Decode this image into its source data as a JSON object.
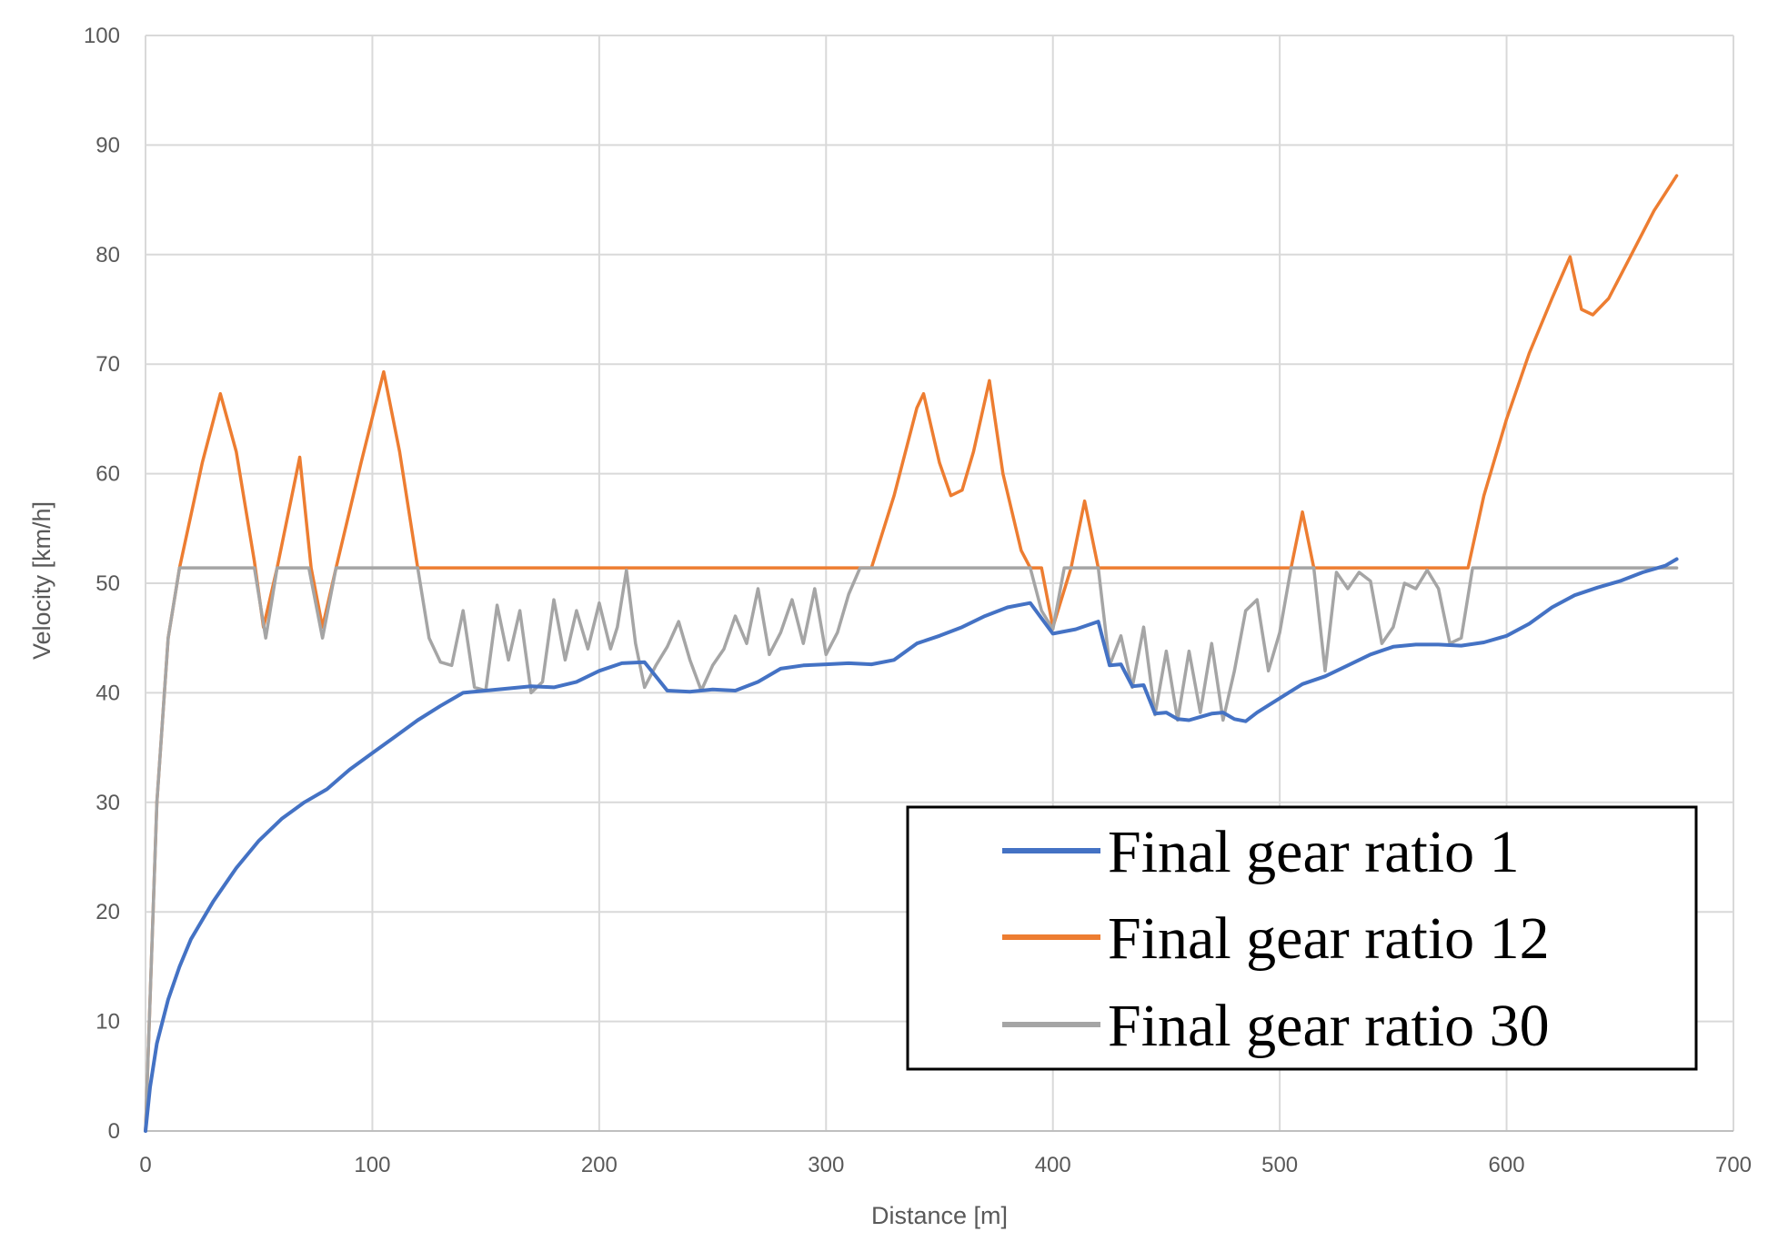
{
  "chart_data": {
    "type": "line",
    "title": "",
    "xlabel": "Distance [m]",
    "ylabel": "Velocity [km/h]",
    "xlim": [
      0,
      700
    ],
    "ylim": [
      0,
      100
    ],
    "xticks": [
      0,
      100,
      200,
      300,
      400,
      500,
      600,
      700
    ],
    "yticks": [
      0,
      10,
      20,
      30,
      40,
      50,
      60,
      70,
      80,
      90,
      100
    ],
    "grid": true,
    "legend_position": "bottom-right",
    "series": [
      {
        "name": "Final gear ratio 1",
        "color": "#4472C4",
        "x": [
          0,
          2,
          5,
          10,
          15,
          20,
          30,
          40,
          50,
          60,
          70,
          80,
          90,
          100,
          110,
          120,
          130,
          140,
          150,
          160,
          170,
          180,
          190,
          200,
          210,
          220,
          230,
          240,
          250,
          260,
          270,
          280,
          290,
          300,
          310,
          320,
          330,
          340,
          350,
          360,
          370,
          380,
          390,
          400,
          410,
          420,
          425,
          430,
          435,
          440,
          445,
          450,
          455,
          460,
          465,
          470,
          475,
          480,
          485,
          490,
          500,
          510,
          520,
          530,
          540,
          550,
          560,
          570,
          580,
          590,
          600,
          610,
          620,
          630,
          640,
          650,
          660,
          670,
          675
        ],
        "y": [
          0,
          4,
          8,
          12,
          15,
          17.5,
          21,
          24,
          26.5,
          28.5,
          30,
          31.2,
          33,
          34.5,
          36,
          37.5,
          38.8,
          40,
          40.2,
          40.4,
          40.6,
          40.5,
          41,
          42,
          42.7,
          42.8,
          40.2,
          40.1,
          40.3,
          40.2,
          41,
          42.2,
          42.5,
          42.6,
          42.7,
          42.6,
          43,
          44.5,
          45.2,
          46,
          47,
          47.8,
          48.2,
          45.4,
          45.8,
          46.5,
          42.5,
          42.6,
          40.6,
          40.7,
          38.1,
          38.2,
          37.6,
          37.5,
          37.8,
          38.1,
          38.2,
          37.6,
          37.4,
          38.2,
          39.5,
          40.8,
          41.5,
          42.5,
          43.5,
          44.2,
          44.4,
          44.4,
          44.3,
          44.6,
          45.2,
          46.3,
          47.8,
          48.9,
          49.6,
          50.2,
          51,
          51.6,
          52.2
        ]
      },
      {
        "name": "Final gear ratio 12",
        "color": "#ED7D31",
        "x": [
          0,
          5,
          10,
          15,
          25,
          33,
          40,
          48,
          52,
          58,
          68,
          73,
          78,
          84,
          95,
          105,
          112,
          120,
          320,
          330,
          340,
          343,
          350,
          355,
          360,
          365,
          372,
          378,
          386,
          390,
          395,
          400,
          408,
          414,
          420,
          505,
          510,
          515,
          583,
          590,
          600,
          610,
          620,
          628,
          633,
          638,
          645,
          655,
          665,
          675
        ],
        "y": [
          0,
          30,
          45,
          51.4,
          61,
          67.3,
          62,
          52,
          46,
          51.4,
          61.5,
          51.4,
          46,
          51.4,
          61,
          69.3,
          62,
          51.4,
          51.4,
          58,
          66,
          67.3,
          61,
          58,
          58.5,
          62,
          68.5,
          60,
          53,
          51.4,
          51.4,
          46,
          51.4,
          57.5,
          51.4,
          51.4,
          56.5,
          51.4,
          51.4,
          58,
          65,
          71,
          76,
          79.8,
          75,
          74.5,
          76,
          80,
          84,
          87.2
        ]
      },
      {
        "name": "Final gear ratio 30",
        "color": "#A5A5A5",
        "x": [
          0,
          5,
          10,
          15,
          30,
          48,
          53,
          58,
          72,
          78,
          84,
          120,
          125,
          130,
          135,
          140,
          145,
          150,
          155,
          160,
          165,
          170,
          175,
          180,
          185,
          190,
          195,
          200,
          205,
          208,
          212,
          216,
          220,
          225,
          230,
          235,
          240,
          245,
          250,
          255,
          260,
          265,
          270,
          275,
          280,
          285,
          290,
          295,
          300,
          305,
          310,
          315,
          320,
          385,
          390,
          395,
          400,
          405,
          412,
          420,
          425,
          430,
          435,
          440,
          445,
          450,
          455,
          460,
          465,
          470,
          475,
          480,
          485,
          490,
          495,
          500,
          505,
          515,
          520,
          525,
          530,
          535,
          540,
          545,
          550,
          555,
          560,
          565,
          570,
          575,
          580,
          585,
          590,
          675
        ],
        "y": [
          0,
          30,
          45,
          51.4,
          51.4,
          51.4,
          45,
          51.4,
          51.4,
          45,
          51.4,
          51.4,
          45,
          42.8,
          42.5,
          47.5,
          40.5,
          40.2,
          48,
          43,
          47.5,
          40,
          41,
          48.5,
          43,
          47.5,
          44,
          48.2,
          44,
          46,
          51.2,
          44.5,
          40.5,
          42.5,
          44.2,
          46.5,
          43,
          40.2,
          42.5,
          44,
          47,
          44.5,
          49.5,
          43.5,
          45.5,
          48.5,
          44.5,
          49.5,
          43.5,
          45.5,
          49,
          51.4,
          51.4,
          51.4,
          51.4,
          47.5,
          45.8,
          51.4,
          51.4,
          51.4,
          42.5,
          45.2,
          40.5,
          46,
          38,
          43.8,
          37.5,
          43.8,
          38.2,
          44.5,
          37.5,
          42,
          47.5,
          48.5,
          42,
          45.5,
          51.4,
          51.4,
          42,
          51,
          49.5,
          51,
          50.2,
          44.5,
          46,
          50,
          49.5,
          51.2,
          49.5,
          44.5,
          45,
          51.4,
          51.4,
          51.4
        ]
      }
    ]
  }
}
